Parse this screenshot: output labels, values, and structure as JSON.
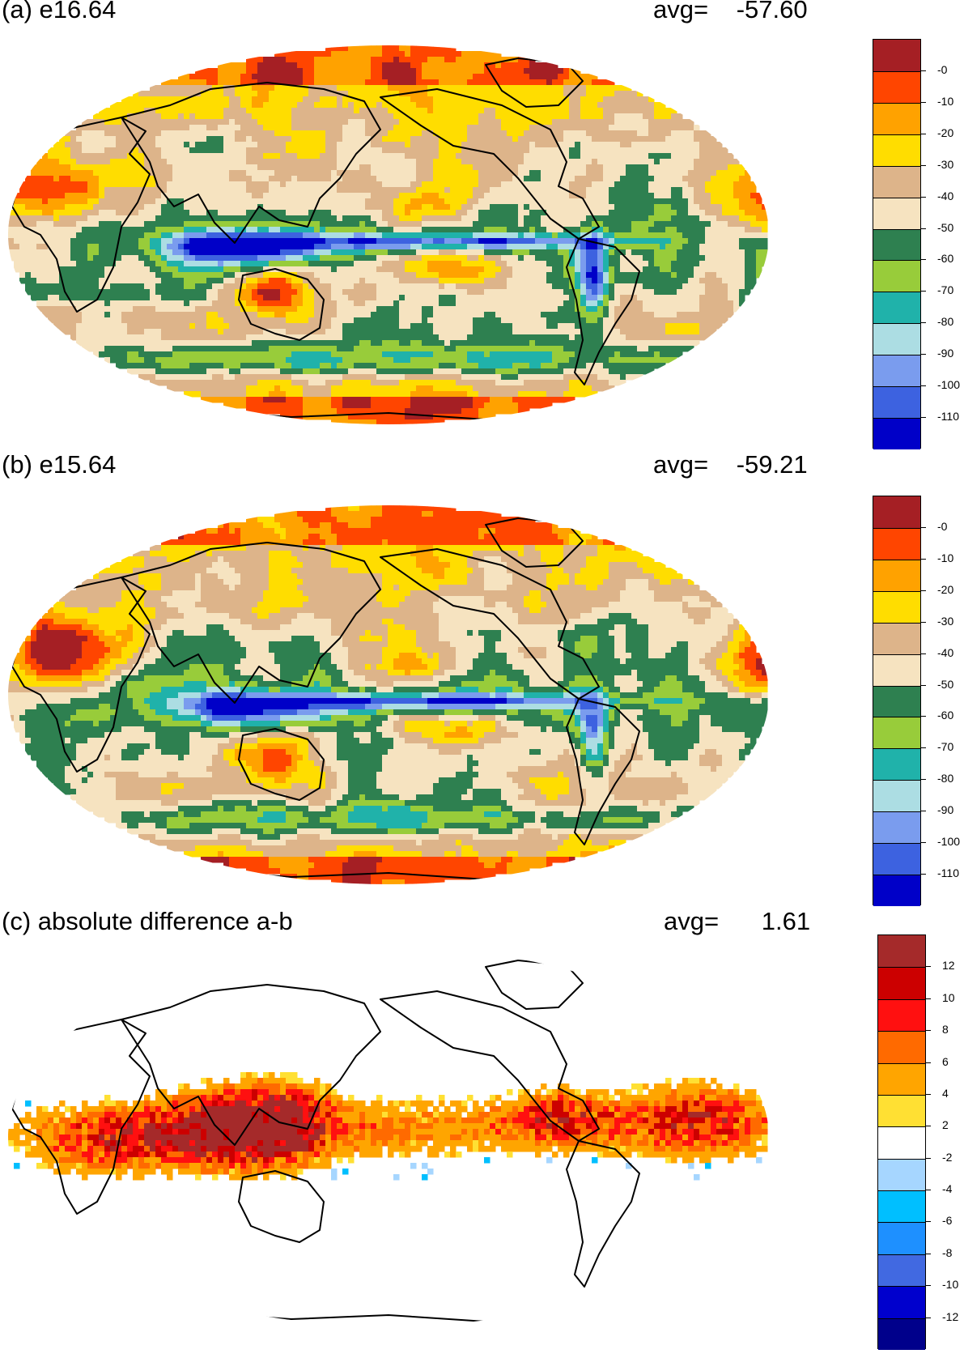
{
  "panels": [
    {
      "title": "(a) e16.64",
      "avg_label": "avg=",
      "avg_value": "-57.60",
      "colors": [
        "#A51F24",
        "#FF4500",
        "#FFA200",
        "#FFDD00",
        "#DDB48A",
        "#F6E3C0",
        "#2E8050",
        "#98CC3A",
        "#20B2AA",
        "#ACDDE3",
        "#7A9CEE",
        "#3D62E0",
        "#0000C8"
      ],
      "labels": [
        "-0",
        "-10",
        "-20",
        "-30",
        "-40",
        "-50",
        "-60",
        "-70",
        "-80",
        "-90",
        "-100",
        "-110"
      ]
    },
    {
      "title": "(b) e15.64",
      "avg_label": "avg=",
      "avg_value": "-59.21",
      "colors": [
        "#A51F24",
        "#FF4500",
        "#FFA200",
        "#FFDD00",
        "#DDB48A",
        "#F6E3C0",
        "#2E8050",
        "#98CC3A",
        "#20B2AA",
        "#ACDDE3",
        "#7A9CEE",
        "#3D62E0",
        "#0000C8"
      ],
      "labels": [
        "-0",
        "-10",
        "-20",
        "-30",
        "-40",
        "-50",
        "-60",
        "-70",
        "-80",
        "-90",
        "-100",
        "-110"
      ]
    },
    {
      "title": "(c) absolute difference a-b",
      "avg_label": "avg=",
      "avg_value": "1.61",
      "colors": [
        "#A52A2A",
        "#CC0000",
        "#FF1010",
        "#FF6A00",
        "#FFA500",
        "#FFE033",
        "#FFFFFF",
        "#A6D6FF",
        "#00BFFF",
        "#1E90FF",
        "#4169E1",
        "#0000CD",
        "#00008B"
      ],
      "labels": [
        "12",
        "10",
        "8",
        "6",
        "4",
        "2",
        "-2",
        "-4",
        "-6",
        "-8",
        "-10",
        "-12"
      ]
    }
  ]
}
